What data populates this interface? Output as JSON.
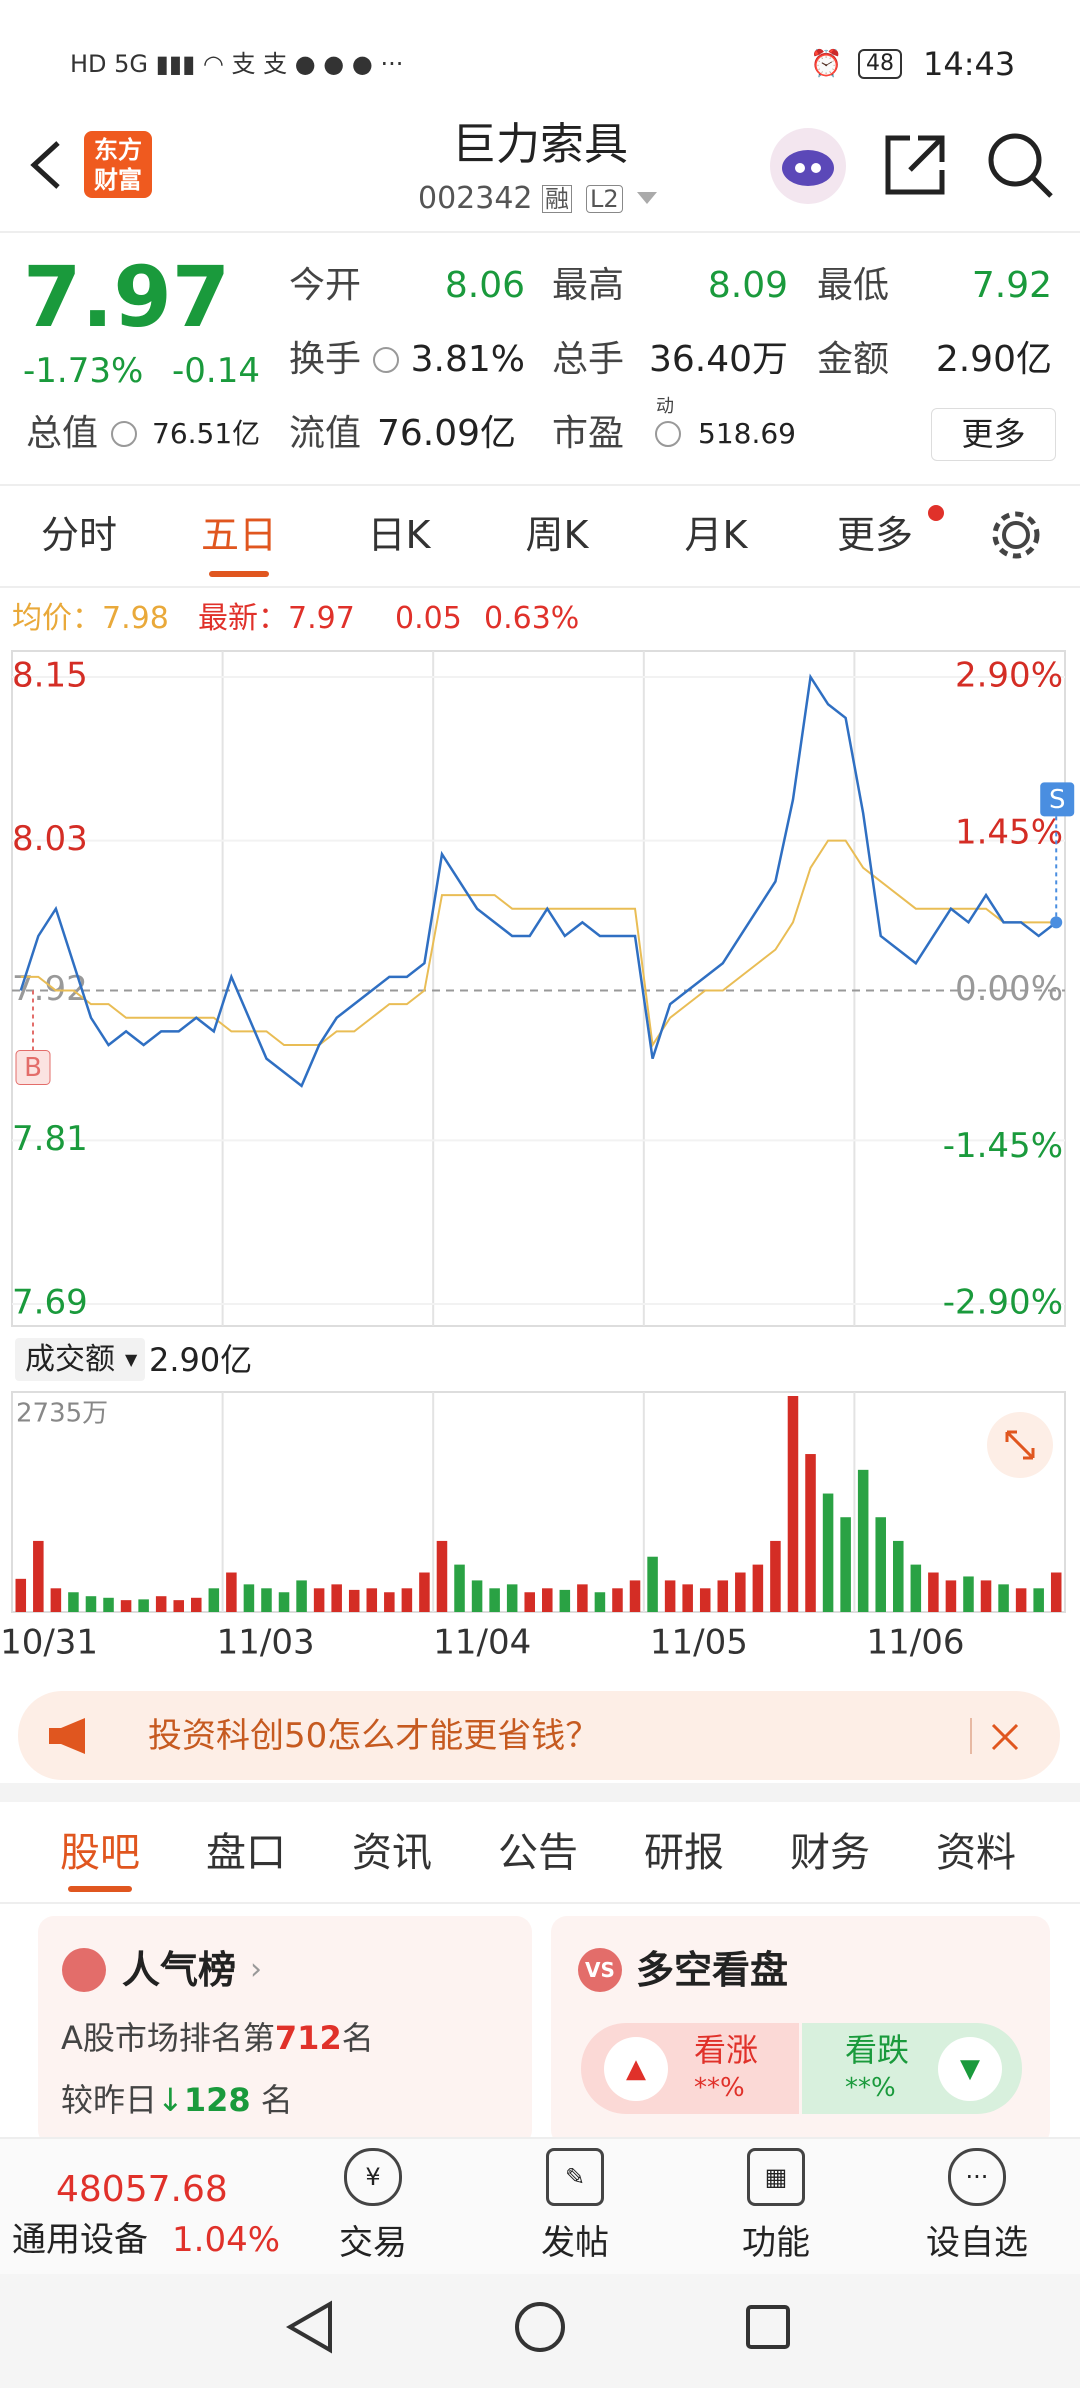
{
  "status_bar": {
    "time": "14:43",
    "battery": "48"
  },
  "header": {
    "logo": [
      "东方",
      "财富"
    ],
    "title": "巨力索具",
    "code": "002342",
    "tag_margin": "融",
    "tag_level": "L2"
  },
  "quote": {
    "price": "7.97",
    "change_pct": "-1.73%",
    "change": "-0.14",
    "total_value_label": "总值",
    "total_value": "76.51亿",
    "stats": [
      {
        "label": "今开",
        "value": "8.06"
      },
      {
        "label": "最高",
        "value": "8.09"
      },
      {
        "label": "最低",
        "value": "7.92"
      },
      {
        "label": "换手",
        "value": "3.81%"
      },
      {
        "label": "总手",
        "value": "36.40万"
      },
      {
        "label": "金额",
        "value": "2.90亿"
      },
      {
        "label": "流值",
        "value": "76.09亿"
      },
      {
        "label": "市盈",
        "value": "518.69"
      }
    ],
    "pe_sup": "动",
    "more": "更多"
  },
  "tabs": [
    "分时",
    "五日",
    "日K",
    "周K",
    "月K",
    "更多"
  ],
  "chart_info": {
    "avg_label": "均价：7.98",
    "latest_label": "最新：7.97",
    "change": "0.05",
    "change_pct": "0.63%"
  },
  "chart_data": {
    "type": "line",
    "categories": [
      null,
      null,
      null,
      null,
      null,
      null,
      "10/31",
      null,
      null,
      null,
      null,
      null,
      null,
      null,
      null,
      null,
      null,
      null,
      "11/03",
      null,
      null,
      null,
      null,
      null,
      null,
      null,
      null,
      null,
      null,
      null,
      "11/04",
      null,
      null,
      null,
      null,
      null,
      null,
      null,
      null,
      null,
      null,
      null,
      "11/05",
      null,
      null,
      null,
      null,
      null,
      null,
      null,
      null,
      null,
      null,
      null,
      "11/06",
      null,
      null,
      null,
      null,
      null
    ],
    "series": [
      {
        "color": "#2f6fc2",
        "values": [
          7.92,
          7.96,
          7.98,
          7.94,
          7.9,
          7.88,
          7.89,
          7.88,
          7.89,
          7.89,
          7.9,
          7.89,
          7.93,
          7.9,
          7.87,
          7.86,
          7.85,
          7.88,
          7.9,
          7.91,
          7.92,
          7.93,
          7.93,
          7.94,
          8.02,
          8,
          7.98,
          7.97,
          7.96,
          7.96,
          7.98,
          7.96,
          7.97,
          7.96,
          7.96,
          7.96,
          7.87,
          7.91,
          7.92,
          7.93,
          7.94,
          7.96,
          7.98,
          8,
          8.06,
          8.15,
          8.13,
          8.12,
          8.05,
          7.96,
          7.95,
          7.94,
          7.96,
          7.98,
          7.97,
          7.99,
          7.97,
          7.97,
          7.96,
          7.97
        ]
      },
      {
        "color": "#e9bd55",
        "values": [
          7.93,
          7.93,
          7.92,
          7.92,
          7.91,
          7.91,
          7.9,
          7.9,
          7.9,
          7.9,
          7.9,
          7.9,
          7.89,
          7.89,
          7.89,
          7.88,
          7.88,
          7.88,
          7.89,
          7.89,
          7.9,
          7.91,
          7.91,
          7.92,
          7.99,
          7.99,
          7.99,
          7.99,
          7.98,
          7.98,
          7.98,
          7.98,
          7.98,
          7.98,
          7.98,
          7.98,
          7.88,
          7.9,
          7.91,
          7.92,
          7.92,
          7.93,
          7.94,
          7.95,
          7.97,
          8.01,
          8.03,
          8.03,
          8.01,
          8,
          7.99,
          7.98,
          7.98,
          7.98,
          7.98,
          7.98,
          7.97,
          7.97,
          7.97,
          7.97
        ]
      }
    ],
    "ylim": [
      7.69,
      8.15
    ],
    "yticks": [
      7.69,
      7.81,
      7.92,
      8.03,
      8.15
    ],
    "y2lim": [
      -2.9,
      2.9
    ],
    "y2ticks": [
      {
        "value": -2.9,
        "label": "-2.90%"
      },
      {
        "value": -1.45,
        "label": "-1.45%"
      },
      {
        "value": 0,
        "label": "0.00%"
      },
      {
        "value": 1.45,
        "label": "1.45%"
      },
      {
        "value": 2.9,
        "label": "2.90%"
      }
    ],
    "markers": [
      "B",
      "S"
    ],
    "volume_label": "成交额",
    "volume_total": "2.90亿",
    "volume_ylim": [
      0,
      2735
    ],
    "volume_yticks": [
      {
        "value": 2735,
        "label": "2735万"
      }
    ],
    "volume_values": [
      420,
      900,
      300,
      250,
      200,
      180,
      150,
      160,
      200,
      150,
      180,
      300,
      500,
      350,
      300,
      250,
      400,
      300,
      350,
      280,
      300,
      250,
      300,
      500,
      900,
      600,
      400,
      300,
      350,
      250,
      300,
      280,
      350,
      250,
      300,
      400,
      700,
      400,
      350,
      300,
      400,
      500,
      600,
      900,
      2735,
      2000,
      1500,
      1200,
      1800,
      1200,
      900,
      600,
      500,
      400,
      450,
      400,
      350,
      300,
      300,
      500
    ]
  },
  "banner": {
    "text": "投资科创50怎么才能更省钱？"
  },
  "content_tabs": [
    "股吧",
    "盘口",
    "资讯",
    "公告",
    "研报",
    "财务",
    "资料"
  ],
  "popularity": {
    "title": "人气榜",
    "rank_prefix": "A股市场排名第",
    "rank": "712",
    "rank_suffix": "名",
    "delta_prefix": "较昨日",
    "delta": "128",
    "delta_suffix": "名"
  },
  "bull_bear": {
    "title": "多空看盘",
    "bull": "看涨",
    "bull_pct": "**%",
    "bear": "看跌",
    "bear_pct": "**%"
  },
  "bottom_bar": {
    "index_value": "48057.68",
    "sector": "通用设备",
    "sector_pct": "1.04%",
    "actions": [
      "交易",
      "发帖",
      "功能",
      "设自选"
    ]
  }
}
